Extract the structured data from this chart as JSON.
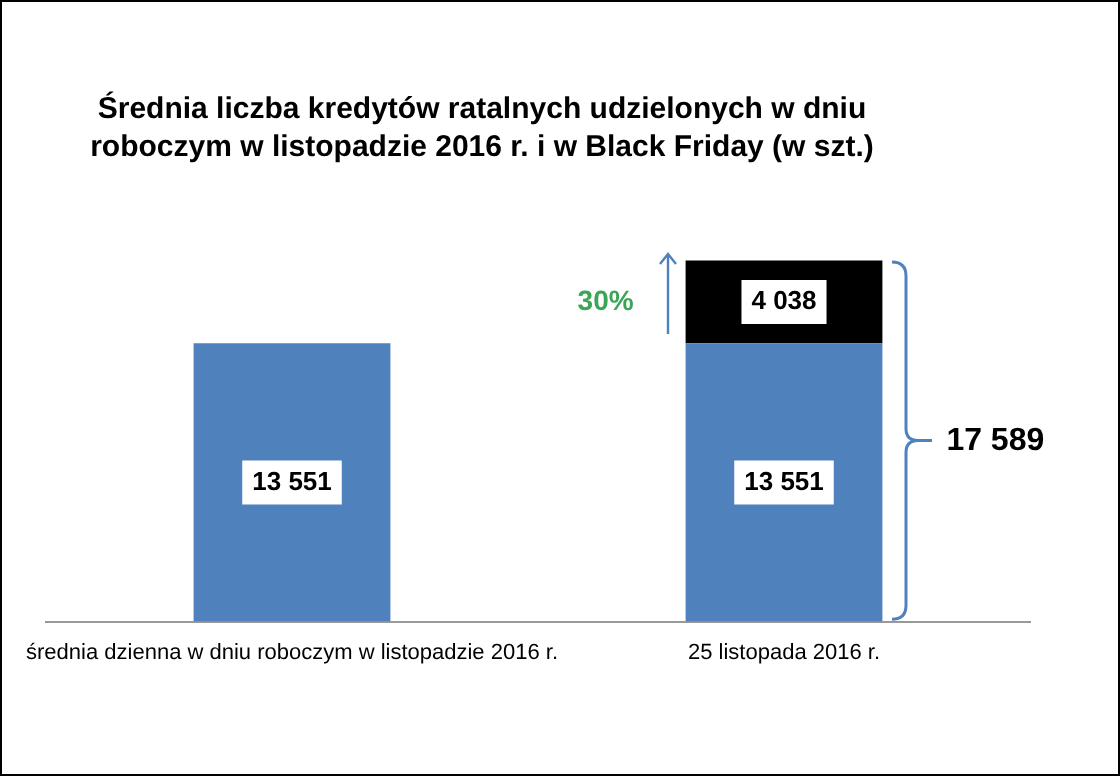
{
  "chart_data": {
    "type": "bar",
    "title": "Średnia liczba kredytów ratalnych udzielonych w dniu roboczym w listopadzie 2016 r. i w Black Friday (w szt.)",
    "categories": [
      "średnia dzienna w dniu roboczym w listopadzie 2016 r.",
      "25 listopada 2016 r."
    ],
    "stacked": true,
    "tick_labels": "x",
    "grid": false,
    "legend": false,
    "series": [
      {
        "color": "#4f81bd",
        "values": [
          13551,
          13551
        ],
        "value_labels": [
          "13 551",
          "13 551"
        ]
      },
      {
        "color": "#000000",
        "values": [
          null,
          4038
        ],
        "value_labels": [
          null,
          "4 038"
        ]
      }
    ],
    "totals": [
      null,
      "17 589"
    ],
    "annotations": [
      "30%"
    ]
  }
}
